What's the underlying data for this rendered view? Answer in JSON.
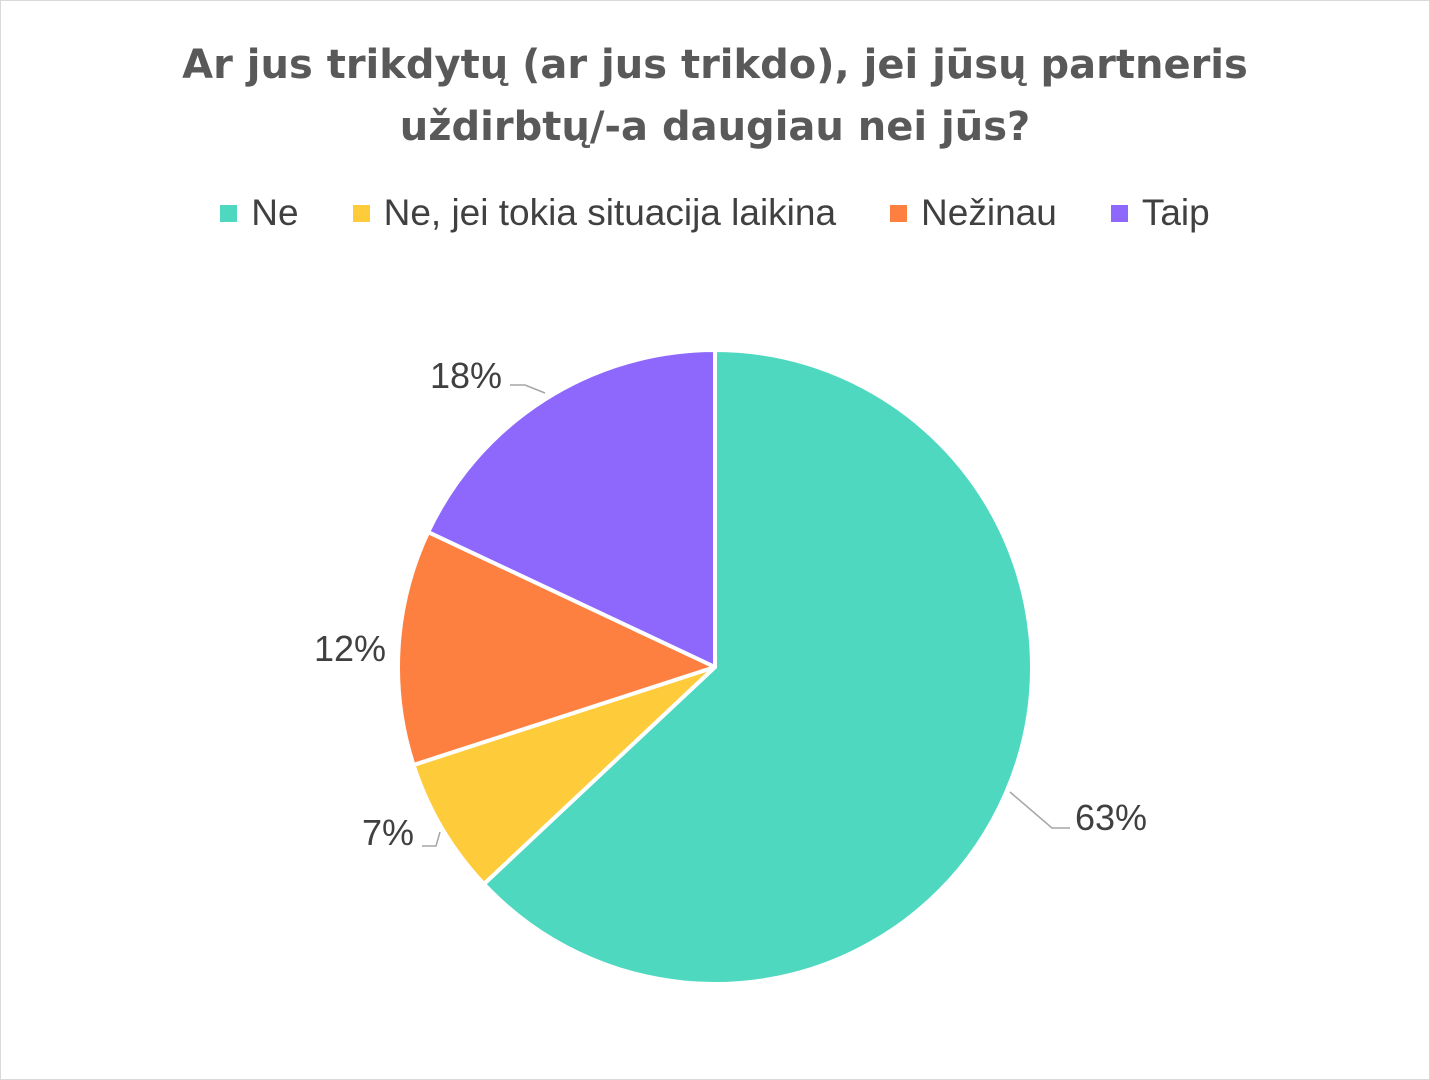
{
  "chart_data": {
    "type": "pie",
    "title_lines": [
      "Ar jus trikdytų (ar jus trikdo), jei jūsų partneris",
      "uždirbtų/-a daugiau nei jūs?"
    ],
    "categories": [
      "Ne",
      "Ne, jei tokia situacija laikina",
      "Nežinau",
      "Taip"
    ],
    "values": [
      63,
      7,
      12,
      18
    ],
    "data_labels": [
      "63%",
      "7%",
      "12%",
      "18%"
    ],
    "colors": [
      "#4fd8c0",
      "#fecb3a",
      "#fe8041",
      "#8e68fd"
    ],
    "legend_position": "top",
    "start_angle": "12 o'clock, clockwise"
  }
}
